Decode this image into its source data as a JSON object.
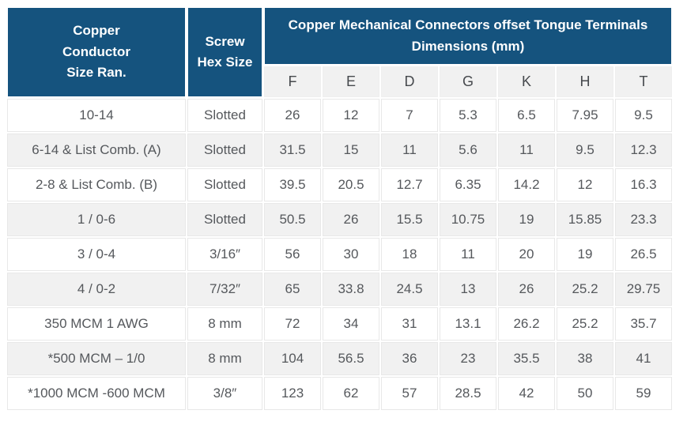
{
  "table": {
    "header": {
      "col1_lines": [
        "Copper",
        "Conductor",
        "Size Ran."
      ],
      "col2_lines": [
        "Screw",
        "Hex Size"
      ],
      "banner_lines": [
        "Copper Mechanical Connectors offset Tongue Terminals",
        "Dimensions (mm)"
      ],
      "dim_columns": [
        "F",
        "E",
        "D",
        "G",
        "K",
        "H",
        "T"
      ]
    },
    "rows": [
      {
        "conductor": "10-14",
        "screw": "Slotted",
        "dims": [
          "26",
          "12",
          "7",
          "5.3",
          "6.5",
          "7.95",
          "9.5"
        ]
      },
      {
        "conductor": "6-14 & List Comb. (A)",
        "screw": "Slotted",
        "dims": [
          "31.5",
          "15",
          "11",
          "5.6",
          "11",
          "9.5",
          "12.3"
        ]
      },
      {
        "conductor": "2-8 & List Comb. (B)",
        "screw": "Slotted",
        "dims": [
          "39.5",
          "20.5",
          "12.7",
          "6.35",
          "14.2",
          "12",
          "16.3"
        ]
      },
      {
        "conductor": "1 / 0-6",
        "screw": "Slotted",
        "dims": [
          "50.5",
          "26",
          "15.5",
          "10.75",
          "19",
          "15.85",
          "23.3"
        ]
      },
      {
        "conductor": "3 / 0-4",
        "screw": "3/16″",
        "dims": [
          "56",
          "30",
          "18",
          "11",
          "20",
          "19",
          "26.5"
        ]
      },
      {
        "conductor": "4 / 0-2",
        "screw": "7/32″",
        "dims": [
          "65",
          "33.8",
          "24.5",
          "13",
          "26",
          "25.2",
          "29.75"
        ]
      },
      {
        "conductor": "350 MCM 1 AWG",
        "screw": "8 mm",
        "dims": [
          "72",
          "34",
          "31",
          "13.1",
          "26.2",
          "25.2",
          "35.7"
        ]
      },
      {
        "conductor": "*500 MCM – 1/0",
        "screw": "8 mm",
        "dims": [
          "104",
          "56.5",
          "36",
          "23",
          "35.5",
          "38",
          "41"
        ]
      },
      {
        "conductor": "*1000 MCM -600 MCM",
        "screw": "3/8″",
        "dims": [
          "123",
          "62",
          "57",
          "28.5",
          "42",
          "50",
          "59"
        ]
      }
    ],
    "colors": {
      "header_bg": "#15537E",
      "header_text": "#ffffff",
      "subheader_bg": "#F1F1F1",
      "row_alt_bg": "#F1F1F1",
      "row_bg": "#ffffff",
      "border": "#E8E8E8",
      "data_text": "#55585C"
    }
  }
}
